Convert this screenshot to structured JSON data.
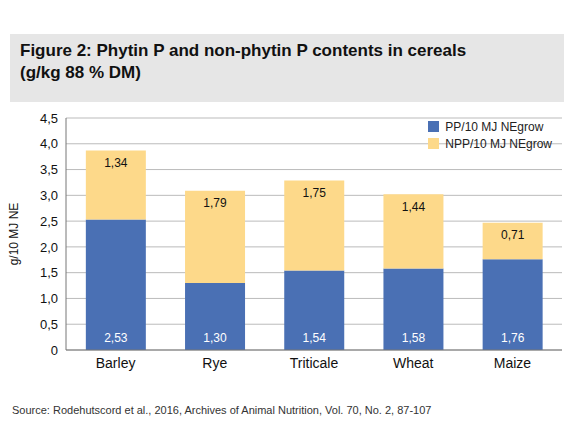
{
  "chart_data": {
    "type": "bar",
    "title": "Figure 2: Phytin P and non-phytin P contents in cereals",
    "subtitle": "(g/kg 88 % DM)",
    "y_label": "g/10 MJ NE",
    "source": "Source: Rodehutscord et al., 2016, Archives of Animal Nutrition, Vol. 70, No. 2, 87-107",
    "categories": [
      "Barley",
      "Rye",
      "Triticale",
      "Wheat",
      "Maize"
    ],
    "series": [
      {
        "name": "PP/10 MJ NEgrow",
        "color": "#4a70b4",
        "values": [
          2.53,
          1.3,
          1.54,
          1.58,
          1.76
        ],
        "value_labels": [
          "2,53",
          "1,30",
          "1,54",
          "1,58",
          "1,76"
        ]
      },
      {
        "name": "NPP/10 MJ NEgrow",
        "color": "#fdd98a",
        "values": [
          1.34,
          1.79,
          1.75,
          1.44,
          0.71
        ],
        "value_labels": [
          "1,34",
          "1,79",
          "1,75",
          "1,44",
          "0,71"
        ]
      }
    ],
    "ylim": [
      0,
      4.5
    ],
    "yticks": [
      0,
      {
        "value": 0.5,
        "label": "0,5"
      },
      {
        "value": 1,
        "label": "1,0"
      },
      {
        "value": 1.5,
        "label": "1,5"
      },
      {
        "value": 2,
        "label": "2,0"
      },
      {
        "value": 2.5,
        "label": "2,5"
      },
      {
        "value": 3,
        "label": "3,0"
      },
      {
        "value": 3.5,
        "label": "3,5"
      },
      {
        "value": 4,
        "label": "4,0"
      },
      {
        "value": 4.5,
        "label": "4,5"
      }
    ],
    "stacked": true,
    "grid": true,
    "legend": "upper right",
    "data_labels": true
  }
}
